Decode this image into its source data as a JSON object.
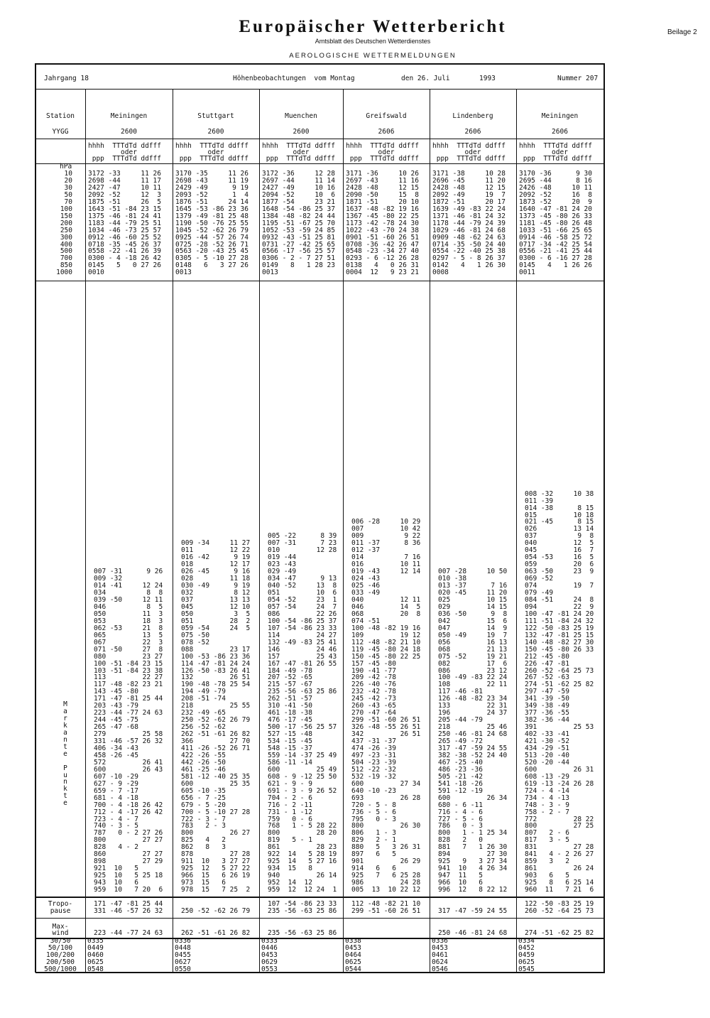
{
  "header": {
    "title": "Europäischer Wetterbericht",
    "subtitle": "Amtsblatt des Deutschen Wetterdienstes",
    "section": "AEROLOGISCHE WETTERMELDUNGEN",
    "supplement": "Beilage 2",
    "volume": "Jahrgang 18",
    "observation": "Höhenbeobachtungen  vom Montag",
    "date": "den 26. Juli",
    "year": "1993",
    "number": "Nummer 207"
  },
  "labels": {
    "station": "Station",
    "yygg": "YYGG",
    "hpa": "hPa",
    "col_line1": "hhhh  TTTdTd ddfff",
    "col_line2": "oder",
    "col_line3": " ppp  TTTdTd ddfff",
    "levels": [
      "10",
      "20",
      "30",
      "50",
      "70",
      "100",
      "150",
      "200",
      "250",
      "300",
      "400",
      "500",
      "700",
      "850",
      "1000"
    ],
    "markante_punkte": [
      "M",
      "a",
      "r",
      "k",
      "a",
      "n",
      "t",
      "e",
      "",
      "P",
      "u",
      "n",
      "k",
      "t",
      "e"
    ],
    "tropo1": "Tropo-",
    "tropo2": "pause",
    "maxwind1": "Max-",
    "maxwind2": "wind",
    "shear": [
      "30/50",
      "50/100",
      "100/200",
      "200/500",
      "500/1000"
    ]
  },
  "stations": [
    {
      "name": "Meiningen",
      "yygg": "2600",
      "standard": [
        "3172 -33     11 26",
        "2698 -44     11 17",
        "2427 -47     10 11",
        "2092 -52     12  3",
        "1875 -51     26  5",
        "1643 -51 -84 23 15",
        "1375 -46 -81 24 41",
        "1183 -44 -79 25 51",
        "1034 -46 -73 25 57",
        "0912 -46 -60 25 52",
        "0718 -35 -45 26 37",
        "0558 -22 -41 26 39",
        "0300 - 4 -18 26 42",
        "0145   5   0 27 26",
        "0010"
      ],
      "significant": [
        "007 -31      9 26",
        "009 -32",
        "014 -41     12 24",
        "034          8  8",
        "039 -50     12 11",
        "046          8  5",
        "050         11  3",
        "053         18  3",
        "062 -53     21  8",
        "065         13  5",
        "067         22  3",
        "071 -50     27  8",
        "080         23 27",
        "100 -51 -84 23 15",
        "103 -51 -84 23 38",
        "113         22 27",
        "117 -48 -82 23 21",
        "143 -45 -80",
        "171 -47 -81 25 44",
        "203 -43 -79",
        "223 -44 -77 24 63",
        "244 -45 -75",
        "265 -47 -68",
        "279         25 58",
        "331 -46 -57 26 32",
        "406 -34 -43",
        "458 -26 -45",
        "572         26 41",
        "600         26 43",
        "607 -10 -29",
        "627 - 9 -29",
        "659 - 7 -17",
        "681 - 4 -18",
        "700 - 4 -18 26 42",
        "712 - 4 -17 26 42",
        "723 - 4 - 7",
        "740 - 3 - 5",
        "787   0 - 2 27 26",
        "800         27 27",
        "828   4 - 2",
        "860         27 27",
        "898         27 29",
        "921  10   5",
        "925  10   5 25 18",
        "943  10   6",
        "959  10   7 20  6"
      ],
      "tropopause": [
        "171 -47 -81 25 44",
        "331 -46 -57 26 32"
      ],
      "maxwind": "223 -44 -77 24 63",
      "shear": [
        "0335",
        "0449",
        "0460",
        "0625",
        "0548"
      ]
    },
    {
      "name": "Stuttgart",
      "yygg": "2600",
      "standard": [
        "3170 -35     11 26",
        "2698 -43     11 19",
        "2429 -49      9 19",
        "2093 -52      1  4",
        "1876 -51     24 14",
        "1645 -53 -86 23 36",
        "1379 -49 -81 25 48",
        "1190 -50 -76 25 55",
        "1045 -52 -62 26 79",
        "0925 -44 -57 26 74",
        "0725 -28 -52 26 71",
        "0563 -20 -43 25 45",
        "0305 - 5 -10 27 28",
        "0148   6   3 27 26",
        "0013"
      ],
      "significant": [
        "009 -34     11 27",
        "011         12 22",
        "016 -42      9 19",
        "018         12 17",
        "026 -45      9 16",
        "028         11 18",
        "030 -49      9 19",
        "032          8 12",
        "037         13 13",
        "045         12 10",
        "050          3  5",
        "051         28  2",
        "059 -54     24  5",
        "075 -50",
        "078 -52",
        "088         23 17",
        "100 -53 -86 23 36",
        "114 -47 -81 24 24",
        "126 -50 -83 26 41",
        "132         26 51",
        "190 -48 -78 25 54",
        "194 -49 -79",
        "208 -51 -74",
        "218         25 55",
        "232 -49 -65",
        "250 -52 -62 26 79",
        "256 -52 -62",
        "262 -51 -61 26 82",
        "366         27 70",
        "411 -26 -52 26 71",
        "422 -26 -55",
        "442 -26 -50",
        "461 -25 -46",
        "581 -12 -40 25 35",
        "600         25 35",
        "605 -10 -35",
        "656 - 7 -25",
        "679 - 5 -20",
        "700 - 5 -10 27 28",
        "722 - 3 - 7",
        "783   2 - 3",
        "800         26 27",
        "825   4   2",
        "862   8   3",
        "878         27 28",
        "911  10   3 27 27",
        "925  12   5 27 22",
        "966  15   6 26 19",
        "973  15   6",
        "978  15   7 25  2"
      ],
      "tropopause": [
        "",
        "250 -52 -62 26 79"
      ],
      "maxwind": "262 -51 -61 26 82",
      "shear": [
        "0336",
        "0448",
        "0455",
        "0627",
        "0550"
      ]
    },
    {
      "name": "Muenchen",
      "yygg": "2600",
      "standard": [
        "3172 -36     12 28",
        "2697 -44     11 14",
        "2427 -49     10 16",
        "2094 -52     10  6",
        "1877 -54     23 21",
        "1648 -54 -86 25 37",
        "1384 -48 -82 24 44",
        "1195 -51 -67 25 70",
        "1052 -53 -59 24 85",
        "0932 -43 -51 25 81",
        "0731 -27 -42 25 65",
        "0566 -17 -56 25 57",
        "0306 - 2 - 7 27 51",
        "0149   8   1 28 23",
        "0013"
      ],
      "significant": [
        "005 -22      8 39",
        "007 -31      7 23",
        "010         12 28",
        "019 -44",
        "023 -43",
        "029 -49",
        "034 -47      9 13",
        "040 -52     13  8",
        "051         10  6",
        "054 -52     23  1",
        "057 -54     24  7",
        "086         22 26",
        "100 -54 -86 25 37",
        "107 -54 -86 23 33",
        "114         24 27",
        "132 -49 -83 25 41",
        "146         24 46",
        "157         25 43",
        "167 -47 -81 26 55",
        "184 -49 -78",
        "207 -52 -65",
        "215 -57 -67",
        "235 -56 -63 25 86",
        "262 -51 -57",
        "310 -41 -50",
        "461 -18 -38",
        "476 -17 -45",
        "500 -17 -56 25 57",
        "527 -15 -48",
        "534 -15 -45",
        "548 -15 -37",
        "559 -14 -37 25 49",
        "586 -11 -14",
        "600         25 49",
        "608 - 9 -12 25 50",
        "621 - 9 - 9",
        "691 - 3 - 9 26 52",
        "704 - 2 - 6",
        "716 - 2 -11",
        "731 - 1 -12",
        "759   0 - 6",
        "768   1 - 5 28 22",
        "800         28 20",
        "819   5 - 1",
        "861         28 23",
        "922  14   5 28 19",
        "925  14   5 27 16",
        "934  15   8",
        "940         26 14",
        "952  14  12",
        "959  12  12 24  1"
      ],
      "tropopause": [
        "107 -54 -86 23 33",
        "235 -56 -63 25 86"
      ],
      "maxwind": "235 -56 -63 25 86",
      "shear": [
        "0333",
        "0446",
        "0453",
        "0629",
        "0553"
      ]
    },
    {
      "name": "Greifswald",
      "yygg": "2606",
      "standard": [
        "3171 -36     10 26",
        "2697 -43     11 16",
        "2428 -48     12 15",
        "2090 -50     15  8",
        "1871 -51     20 10",
        "1637 -48 -82 19 16",
        "1367 -45 -80 22 25",
        "1173 -42 -78 24 30",
        "1022 -43 -70 24 38",
        "0901 -51 -60 26 51",
        "0708 -36 -42 26 47",
        "0548 -23 -34 27 40",
        "0293 - 6 -12 26 28",
        "0138   4   0 26 31",
        "0004  12   9 23 21"
      ],
      "significant": [
        "006 -28     10 29",
        "007         10 42",
        "009          9 22",
        "011 -37      8 36",
        "012 -37",
        "014          7 16",
        "016         10 11",
        "019 -43     12 14",
        "024 -43",
        "025 -46",
        "033 -49",
        "040         12 11",
        "046         14  5",
        "068         20  8",
        "074 -51",
        "100 -48 -82 19 16",
        "109         19 12",
        "112 -48 -82 21 10",
        "119 -45 -80 24 18",
        "150 -45 -80 22 25",
        "157 -45 -80",
        "190 -41 -77",
        "209 -42 -78",
        "226 -40 -76",
        "232 -42 -78",
        "245 -42 -73",
        "260 -43 -65",
        "270 -47 -64",
        "299 -51 -60 26 51",
        "326 -48 -55 26 51",
        "342         26 51",
        "437 -31 -37",
        "474 -26 -39",
        "497 -23 -31",
        "504 -23 -39",
        "512 -22 -32",
        "532 -19 -32",
        "600         27 34",
        "640 -10 -23",
        "693         26 28",
        "720 - 5 - 8",
        "736 - 5 - 6",
        "795   0 - 3",
        "800         26 30",
        "806   1 - 3",
        "829   2 - 1",
        "880   5   3 26 31",
        "897   6   5",
        "901         26 29",
        "914   6   6",
        "925   7   6 25 28",
        "986         24 28",
        "005  13  10 22 12"
      ],
      "tropopause": [
        "112 -48 -82 21 10",
        "299 -51 -60 26 51"
      ],
      "maxwind": "",
      "shear": [
        "0338",
        "0453",
        "0464",
        "0625",
        "0544"
      ]
    },
    {
      "name": "Lindenberg",
      "yygg": "2606",
      "standard": [
        "3171 -38     10 28",
        "2696 -45     11 20",
        "2428 -48     12 15",
        "2092 -49     19  7",
        "1872 -51     20 17",
        "1639 -49 -83 22 24",
        "1371 -46 -81 24 32",
        "1178 -44 -79 24 39",
        "1029 -46 -81 24 68",
        "0909 -48 -62 24 63",
        "0714 -35 -50 24 40",
        "0554 -22 -40 25 38",
        "0297 - 5 - 8 26 37",
        "0142   4   1 26 30",
        "0008"
      ],
      "significant": [
        "007 -28     10 50",
        "010 -38",
        "013 -37      7 16",
        "020 -45     11 20",
        "025         10 15",
        "029         14 15",
        "036 -50      9  8",
        "042         15  6",
        "047         14  9",
        "050 -49     19  7",
        "056         16 13",
        "068         21 13",
        "075 -52     19 21",
        "082         17  6",
        "086         23 12",
        "100 -49 -83 22 24",
        "108         22 11",
        "117 -46 -81",
        "126 -48 -82 23 34",
        "133         22 31",
        "196         24 37",
        "205 -44 -79",
        "218         25 46",
        "250 -46 -81 24 68",
        "265 -49 -72",
        "317 -47 -59 24 55",
        "382 -38 -52 24 40",
        "467 -25 -40",
        "486 -23 -36",
        "505 -21 -42",
        "541 -18 -26",
        "591 -12 -19",
        "600         26 34",
        "680 - 6 -11",
        "716 - 4 - 6",
        "727 - 5 - 6",
        "786   0 - 3",
        "800   1 - 1 25 34",
        "828   2   0",
        "881   7   1 26 30",
        "894         27 30",
        "925   9   3 27 34",
        "941  10   4 26 34",
        "947  11   5",
        "966  10   6",
        "996  12   8 22 12"
      ],
      "tropopause": [
        "",
        "317 -47 -59 24 55"
      ],
      "maxwind": "250 -46 -81 24 68",
      "shear": [
        "0336",
        "0453",
        "0461",
        "0624",
        "0546"
      ]
    },
    {
      "name": "Meiningen",
      "yygg": "2606",
      "standard": [
        "3170 -36      9 30",
        "2695 -44      8 16",
        "2426 -48     10 11",
        "2092 -52     16  8",
        "1873 -52     20  9",
        "1640 -47 -81 24 20",
        "1373 -45 -80 26 33",
        "1181 -45 -80 26 48",
        "1033 -51 -66 25 65",
        "0914 -46 -58 25 72",
        "0717 -34 -42 25 54",
        "0556 -21 -41 25 44",
        "0300 - 6 -16 27 28",
        "0145   4   1 26 26",
        "0011"
      ],
      "significant": [
        "008 -32     10 38",
        "011 -39",
        "014 -38      8 15",
        "015         10 18",
        "021 -45      8 15",
        "026         13 14",
        "037          9  8",
        "040         12  5",
        "045         16  7",
        "054 -53     16  5",
        "059         20  6",
        "063 -50     23  9",
        "069 -52",
        "074         19  7",
        "079 -49",
        "084 -51     24  8",
        "094         22  9",
        "100 -47 -81 24 20",
        "111 -51 -84 24 32",
        "122 -50 -83 25 19",
        "132 -47 -81 25 15",
        "140 -48 -82 27 30",
        "150 -45 -80 26 33",
        "212 -45 -80",
        "226 -47 -81",
        "260 -52 -64 25 73",
        "267 -52 -63",
        "274 -51 -62 25 82",
        "297 -47 -59",
        "341 -39 -50",
        "349 -38 -49",
        "377 -36 -55",
        "382 -36 -44",
        "391         25 53",
        "402 -33 -41",
        "421 -30 -52",
        "434 -29 -51",
        "513 -20 -40",
        "520 -20 -44",
        "600         26 31",
        "608 -13 -29",
        "619 -13 -24 26 28",
        "724 - 4 -14",
        "734 - 4 -13",
        "748 - 3 - 9",
        "758 - 2 - 7",
        "772         28 22",
        "800         27 25",
        "807   2 - 6",
        "817   3 - 5",
        "831         27 28",
        "841   4 - 2 26 27",
        "859   3   2",
        "861         26 24",
        "903   6   5",
        "925   8   6 25 14",
        "960  11   7 21  6"
      ],
      "tropopause": [
        "122 -50 -83 25 19",
        "260 -52 -64 25 73"
      ],
      "maxwind": "274 -51 -62 25 82",
      "shear": [
        "0334",
        "0452",
        "0459",
        "0625",
        "0545"
      ]
    }
  ]
}
